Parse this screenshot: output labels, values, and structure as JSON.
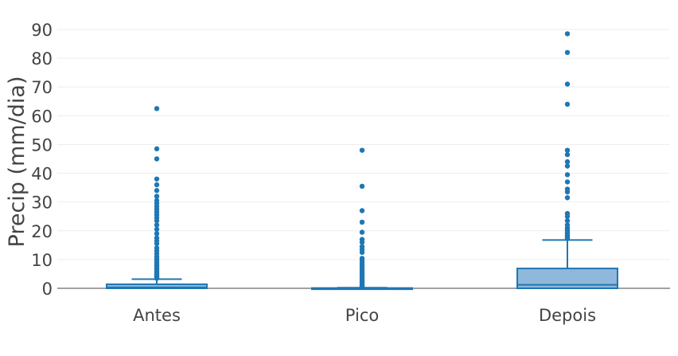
{
  "chart_data": {
    "type": "box",
    "ylabel": "Precip (mm/dia)",
    "xlabel": "",
    "title": "",
    "ylim": [
      0,
      92
    ],
    "yticks": [
      0,
      10,
      20,
      30,
      40,
      50,
      60,
      70,
      80,
      90
    ],
    "grid": true,
    "legend": "none",
    "categories": [
      "Antes",
      "Pico",
      "Depois"
    ],
    "colors": {
      "line": "#1f77b4",
      "fill": "#8fb8da"
    },
    "boxes": [
      {
        "name": "Antes",
        "min": 0,
        "q1": 0,
        "median": 0.3,
        "q3": 1.4,
        "upper_fence": 3.2,
        "outliers": [
          3.5,
          3.8,
          4.1,
          4.4,
          4.8,
          5.2,
          5.6,
          6.0,
          6.5,
          7.0,
          7.6,
          8.2,
          8.8,
          9.5,
          10.2,
          11,
          12,
          13,
          14,
          15.5,
          16.5,
          17.5,
          19,
          20.5,
          22,
          23.5,
          24.5,
          25.5,
          26.5,
          27.5,
          28.5,
          29.5,
          30.5,
          32,
          34,
          36,
          38,
          45,
          48.5,
          62.5
        ]
      },
      {
        "name": "Pico",
        "min": 0,
        "q1": 0,
        "median": 0,
        "q3": 0.1,
        "upper_fence": 0.2,
        "outliers": [
          0.4,
          0.7,
          1.0,
          1.4,
          1.8,
          2.2,
          2.7,
          3.2,
          3.8,
          4.4,
          5.0,
          5.7,
          6.4,
          7.2,
          8.0,
          8.8,
          9.6,
          10.4,
          12.5,
          13.5,
          14.5,
          16,
          17,
          19.5,
          23,
          27,
          35.5,
          48
        ]
      },
      {
        "name": "Depois",
        "min": 0,
        "q1": 0,
        "median": 1.2,
        "q3": 6.9,
        "upper_fence": 16.8,
        "outliers": [
          17.3,
          17.8,
          18.3,
          18.9,
          19.5,
          20.2,
          21,
          22,
          23.5,
          25,
          26,
          31.5,
          33.5,
          34.5,
          37,
          39.5,
          42.5,
          44,
          46.5,
          48,
          64,
          71,
          82,
          88.5
        ]
      }
    ]
  }
}
